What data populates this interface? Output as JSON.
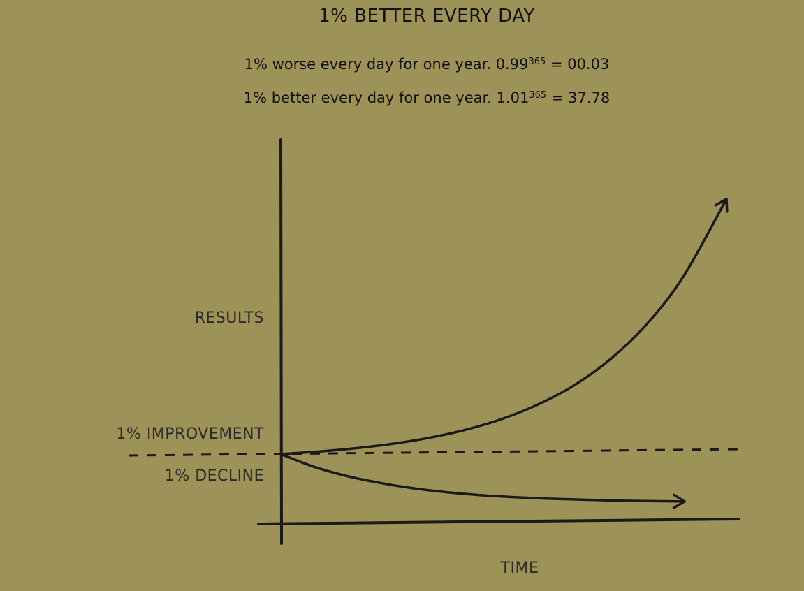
{
  "title": "1% BETTER EVERY DAY",
  "formulas": {
    "worse": {
      "text": "1% worse every day for one year. 0.99",
      "exponent": "365",
      "result": " = 00.03"
    },
    "better": {
      "text": "1% better every day for one year. 1.01",
      "exponent": "365",
      "result": " = 37.78"
    }
  },
  "chart_data": {
    "type": "line",
    "xlabel": "TIME",
    "ylabel": "RESULTS",
    "x_unit": "days",
    "x": [
      0,
      30,
      60,
      90,
      120,
      150,
      180,
      210,
      240,
      270,
      300,
      330,
      365
    ],
    "series": [
      {
        "name": "1% IMPROVEMENT",
        "values": [
          1.0,
          1.35,
          1.82,
          2.45,
          3.3,
          4.45,
          6.0,
          8.1,
          10.9,
          14.7,
          19.8,
          26.7,
          37.78
        ]
      },
      {
        "name": "1% DECLINE",
        "values": [
          1.0,
          0.74,
          0.55,
          0.41,
          0.3,
          0.22,
          0.16,
          0.12,
          0.09,
          0.07,
          0.05,
          0.04,
          0.03
        ]
      }
    ],
    "baseline": 1.0,
    "xlim": [
      0,
      365
    ],
    "ylim": [
      -0.5,
      37.78
    ],
    "grid": false,
    "legend": "none",
    "axis_ticks": false
  },
  "colors": {
    "background": "#9d9257",
    "ink": "#1a1a1a"
  }
}
